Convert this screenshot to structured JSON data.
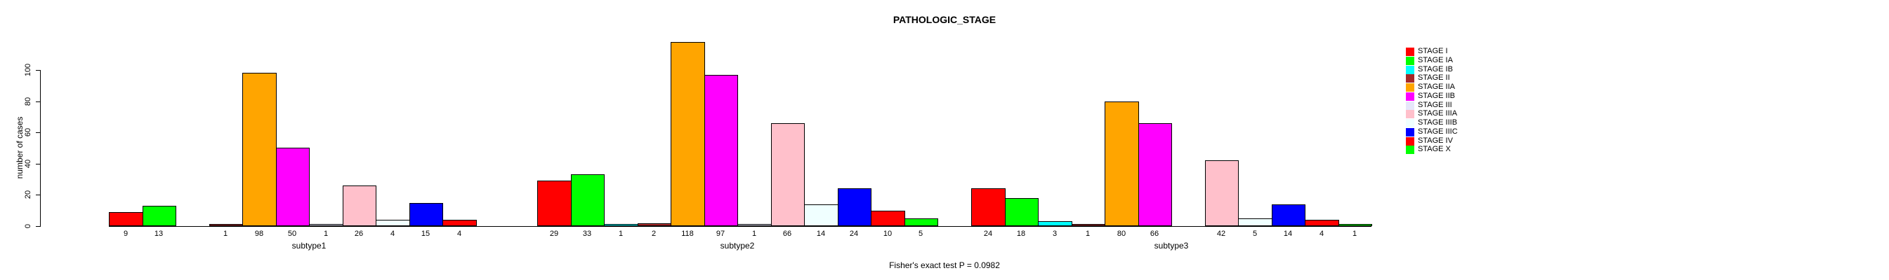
{
  "title": "PATHOLOGIC_STAGE",
  "annotation": "Fisher's exact test P = 0.0982",
  "chart_data": {
    "type": "bar",
    "grouped": true,
    "title": "PATHOLOGIC_STAGE",
    "xlabel": "",
    "ylabel": "number of cases",
    "ylim": [
      0,
      100
    ],
    "yticks": [
      0,
      20,
      40,
      60,
      80,
      100
    ],
    "grid": false,
    "bar_value_labels_shown": true,
    "zero_value_labels_hidden": true,
    "legend_position": "right",
    "categories": [
      "subtype1",
      "subtype2",
      "subtype3"
    ],
    "series": [
      {
        "name": "STAGE I",
        "color": "#FF0000",
        "values": [
          9,
          29,
          24
        ]
      },
      {
        "name": "STAGE IA",
        "color": "#00FF00",
        "values": [
          13,
          33,
          18
        ]
      },
      {
        "name": "STAGE IB",
        "color": "#00FFFF",
        "values": [
          0,
          1,
          3
        ]
      },
      {
        "name": "STAGE II",
        "color": "#A52A2A",
        "values": [
          1,
          2,
          1
        ]
      },
      {
        "name": "STAGE IIA",
        "color": "#FFA500",
        "values": [
          98,
          118,
          80
        ]
      },
      {
        "name": "STAGE IIB",
        "color": "#FF00FF",
        "values": [
          50,
          97,
          66
        ]
      },
      {
        "name": "STAGE III",
        "color": "#E6E6FA",
        "values": [
          1,
          1,
          0
        ]
      },
      {
        "name": "STAGE IIIA",
        "color": "#FFC0CB",
        "values": [
          26,
          66,
          42
        ]
      },
      {
        "name": "STAGE IIIB",
        "color": "#F0FFFF",
        "values": [
          4,
          14,
          5
        ]
      },
      {
        "name": "STAGE IIIC",
        "color": "#0000FF",
        "values": [
          15,
          24,
          14
        ]
      },
      {
        "name": "STAGE IV",
        "color": "#FF0000",
        "values": [
          4,
          10,
          4
        ]
      },
      {
        "name": "STAGE X",
        "color": "#00FF00",
        "values": [
          0,
          5,
          1
        ]
      }
    ],
    "annotation": "Fisher's exact test P = 0.0982"
  }
}
